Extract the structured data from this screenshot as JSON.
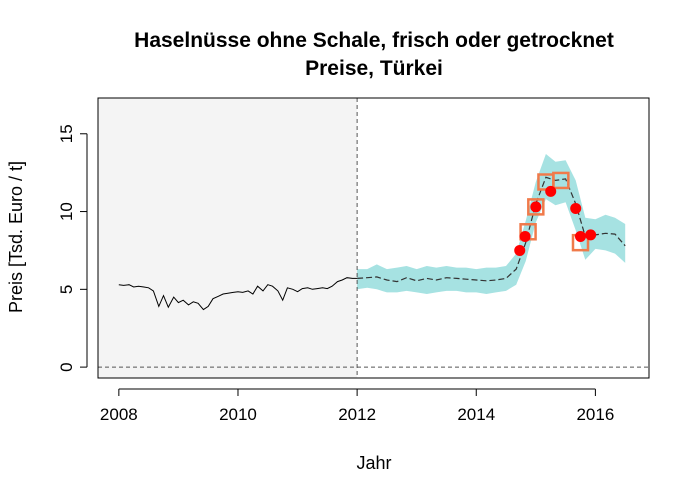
{
  "chart_data": {
    "type": "line",
    "title": "Haselnüsse ohne Schale, frisch oder getrocknet",
    "subtitle": "Preise, Türkei",
    "xlabel": "Jahr",
    "ylabel": "Preis [Tsd. Euro / t]",
    "xlim": [
      2007.65,
      2016.9
    ],
    "ylim": [
      -0.7,
      17.3
    ],
    "xticks": [
      2008,
      2010,
      2012,
      2014,
      2016
    ],
    "yticks": [
      0,
      5,
      10,
      15
    ],
    "grid": false,
    "legend": "none",
    "shaded_history_until": 2012.0,
    "colors": {
      "history_panel": "#f4f4f4",
      "band": "#a6e2e2",
      "observed": "#000000",
      "forecast": "#333333",
      "points": "#ff0000",
      "boxes": "#f07a4a"
    },
    "series": [
      {
        "x": [
          2008.0,
          2008.08,
          2008.17,
          2008.25,
          2008.33,
          2008.42,
          2008.5,
          2008.58,
          2008.67,
          2008.75,
          2008.83,
          2008.92,
          2009.0,
          2009.08,
          2009.17,
          2009.25,
          2009.33,
          2009.42,
          2009.5,
          2009.58,
          2009.67,
          2009.75,
          2009.83,
          2009.92,
          2010.0,
          2010.08,
          2010.17,
          2010.25,
          2010.33,
          2010.42,
          2010.5,
          2010.58,
          2010.67,
          2010.75,
          2010.83,
          2010.92,
          2011.0,
          2011.08,
          2011.17,
          2011.25,
          2011.33,
          2011.42,
          2011.5,
          2011.58,
          2011.67,
          2011.75,
          2011.83,
          2011.92,
          2012.0
        ],
        "y": [
          5.3,
          5.25,
          5.3,
          5.15,
          5.2,
          5.15,
          5.1,
          4.9,
          3.9,
          4.6,
          3.85,
          4.5,
          4.15,
          4.3,
          4.0,
          4.2,
          4.1,
          3.7,
          3.9,
          4.4,
          4.55,
          4.7,
          4.75,
          4.8,
          4.85,
          4.8,
          4.9,
          4.7,
          5.2,
          4.9,
          5.3,
          5.2,
          4.9,
          4.3,
          5.1,
          5.0,
          4.85,
          5.05,
          5.1,
          5.0,
          5.05,
          5.1,
          5.05,
          5.2,
          5.5,
          5.6,
          5.75,
          5.7,
          5.7
        ]
      },
      {
        "x": [
          2012.0,
          2012.17,
          2012.33,
          2012.5,
          2012.67,
          2012.83,
          2013.0,
          2013.17,
          2013.33,
          2013.5,
          2013.67,
          2013.83,
          2014.0,
          2014.17,
          2014.33,
          2014.5,
          2014.67,
          2014.83,
          2015.0,
          2015.17,
          2015.33,
          2015.5,
          2015.67,
          2015.83,
          2016.0,
          2016.17,
          2016.33,
          2016.5
        ],
        "y": [
          5.7,
          5.75,
          5.8,
          5.6,
          5.5,
          5.75,
          5.55,
          5.7,
          5.6,
          5.75,
          5.7,
          5.65,
          5.6,
          5.55,
          5.6,
          5.7,
          6.3,
          8.0,
          10.5,
          12.2,
          12.0,
          12.1,
          10.5,
          8.4,
          8.5,
          8.6,
          8.55,
          7.8
        ]
      },
      {
        "x": [
          2012.0,
          2012.17,
          2012.33,
          2012.5,
          2012.67,
          2012.83,
          2013.0,
          2013.17,
          2013.33,
          2013.5,
          2013.67,
          2013.83,
          2014.0,
          2014.17,
          2014.33,
          2014.5,
          2014.67,
          2014.83,
          2015.0,
          2015.17,
          2015.33,
          2015.5,
          2015.67,
          2015.83,
          2016.0,
          2016.17,
          2016.33,
          2016.5
        ],
        "ylow": [
          5.0,
          5.1,
          5.0,
          4.8,
          4.8,
          4.9,
          4.8,
          4.7,
          4.8,
          4.9,
          4.9,
          4.8,
          4.8,
          4.7,
          4.8,
          4.9,
          5.3,
          6.8,
          9.3,
          10.8,
          10.4,
          10.6,
          8.8,
          6.9,
          7.6,
          7.5,
          7.3,
          6.7
        ],
        "yhigh": [
          6.3,
          6.3,
          6.6,
          6.3,
          6.4,
          6.5,
          6.3,
          6.5,
          6.4,
          6.5,
          6.4,
          6.4,
          6.3,
          6.4,
          6.4,
          6.5,
          7.3,
          9.4,
          11.9,
          13.7,
          13.2,
          13.3,
          12.0,
          9.6,
          9.5,
          9.8,
          9.6,
          9.2
        ]
      },
      {
        "x": [
          2014.73,
          2014.82,
          2015.0,
          2015.25,
          2015.67,
          2015.75,
          2015.92
        ],
        "y": [
          7.5,
          8.4,
          10.3,
          11.3,
          10.2,
          8.4,
          8.5
        ]
      },
      {
        "x": [
          2014.87,
          2015.0,
          2015.17,
          2015.42,
          2015.75
        ],
        "y": [
          8.7,
          10.3,
          11.9,
          12.0,
          8.0
        ]
      }
    ]
  }
}
